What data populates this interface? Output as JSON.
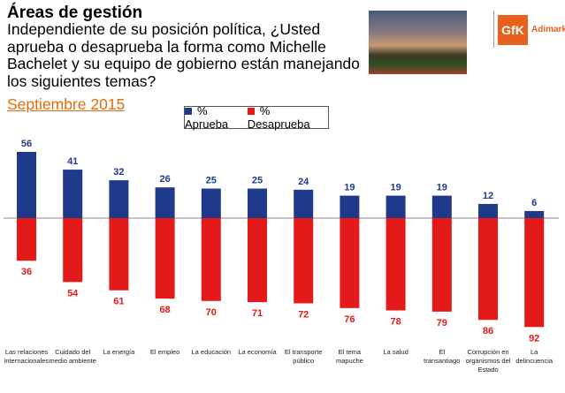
{
  "header": {
    "title": "Áreas de gestión",
    "question": "Independiente de su posición política, ¿Usted aprueba o desaprueba la forma como Michelle Bachelet y su equipo de gobierno están manejando los siguientes temas?",
    "date": "Septiembre 2015",
    "logo_text": "GfK",
    "brand": "Adimark"
  },
  "chart_data": {
    "type": "bar",
    "title": "Áreas de gestión",
    "categories": [
      "Las relaciones internacionales",
      "Cuidado del medio ambiente",
      "La energía",
      "El empleo",
      "La educación",
      "La economía",
      "El transporte público",
      "El tema mapuche",
      "La salud",
      "El transantiago",
      "Corrupción en organismos del Estado",
      "La delincuencia"
    ],
    "series": [
      {
        "name": "% Aprueba",
        "color": "#1f3a8a",
        "values": [
          56,
          41,
          32,
          26,
          25,
          25,
          24,
          19,
          19,
          19,
          12,
          6
        ]
      },
      {
        "name": "% Desaprueba",
        "color": "#e41a1a",
        "values": [
          36,
          54,
          61,
          68,
          70,
          71,
          72,
          76,
          78,
          79,
          86,
          92
        ]
      }
    ],
    "legend": "top-center",
    "grid": false
  }
}
